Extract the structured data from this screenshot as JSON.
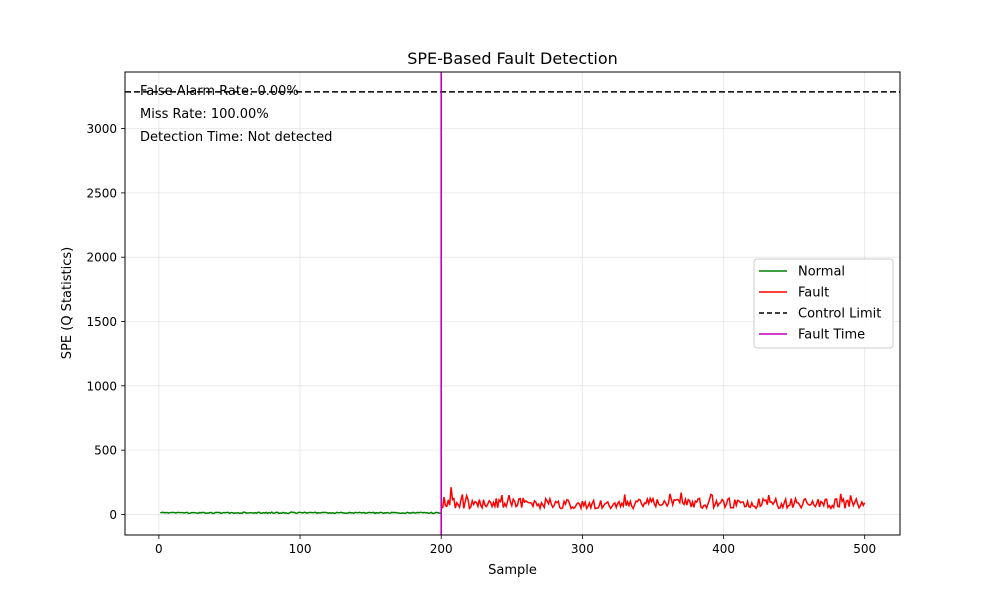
{
  "chart_data": {
    "type": "line",
    "title": "SPE-Based Fault Detection",
    "xlabel": "Sample",
    "ylabel": "SPE (Q Statistics)",
    "xlim": [
      -24,
      525
    ],
    "ylim": [
      -160,
      3440
    ],
    "xticks": [
      0,
      100,
      200,
      300,
      400,
      500
    ],
    "yticks": [
      0,
      500,
      1000,
      1500,
      2000,
      2500,
      3000
    ],
    "grid": true,
    "legend_position": "center-right",
    "annotations": [
      "False Alarm Rate: 0.00%",
      "Miss Rate: 100.00%",
      "Detection Time: Not detected"
    ],
    "series": [
      {
        "name": "Normal",
        "color": "#008000",
        "style": "solid",
        "x_start": 1,
        "x_end": 200,
        "approximate_mean": 12,
        "approximate_range": [
          5,
          25
        ]
      },
      {
        "name": "Fault",
        "color": "#ff0000",
        "style": "solid",
        "x_start": 201,
        "x_end": 500,
        "approximate_mean": 85,
        "approximate_range": [
          25,
          210
        ],
        "notable_points": [
          {
            "x": 207,
            "y": 212
          },
          {
            "x": 243,
            "y": 150
          },
          {
            "x": 248,
            "y": 150
          },
          {
            "x": 330,
            "y": 155
          },
          {
            "x": 362,
            "y": 160
          },
          {
            "x": 370,
            "y": 170
          },
          {
            "x": 432,
            "y": 150
          },
          {
            "x": 483,
            "y": 160
          },
          {
            "x": 490,
            "y": 148
          }
        ]
      },
      {
        "name": "Control Limit",
        "color": "#000000",
        "style": "dashed",
        "y": 3285
      },
      {
        "name": "Fault Time",
        "color": "#bf00bf",
        "style": "solid",
        "x": 200
      }
    ]
  }
}
